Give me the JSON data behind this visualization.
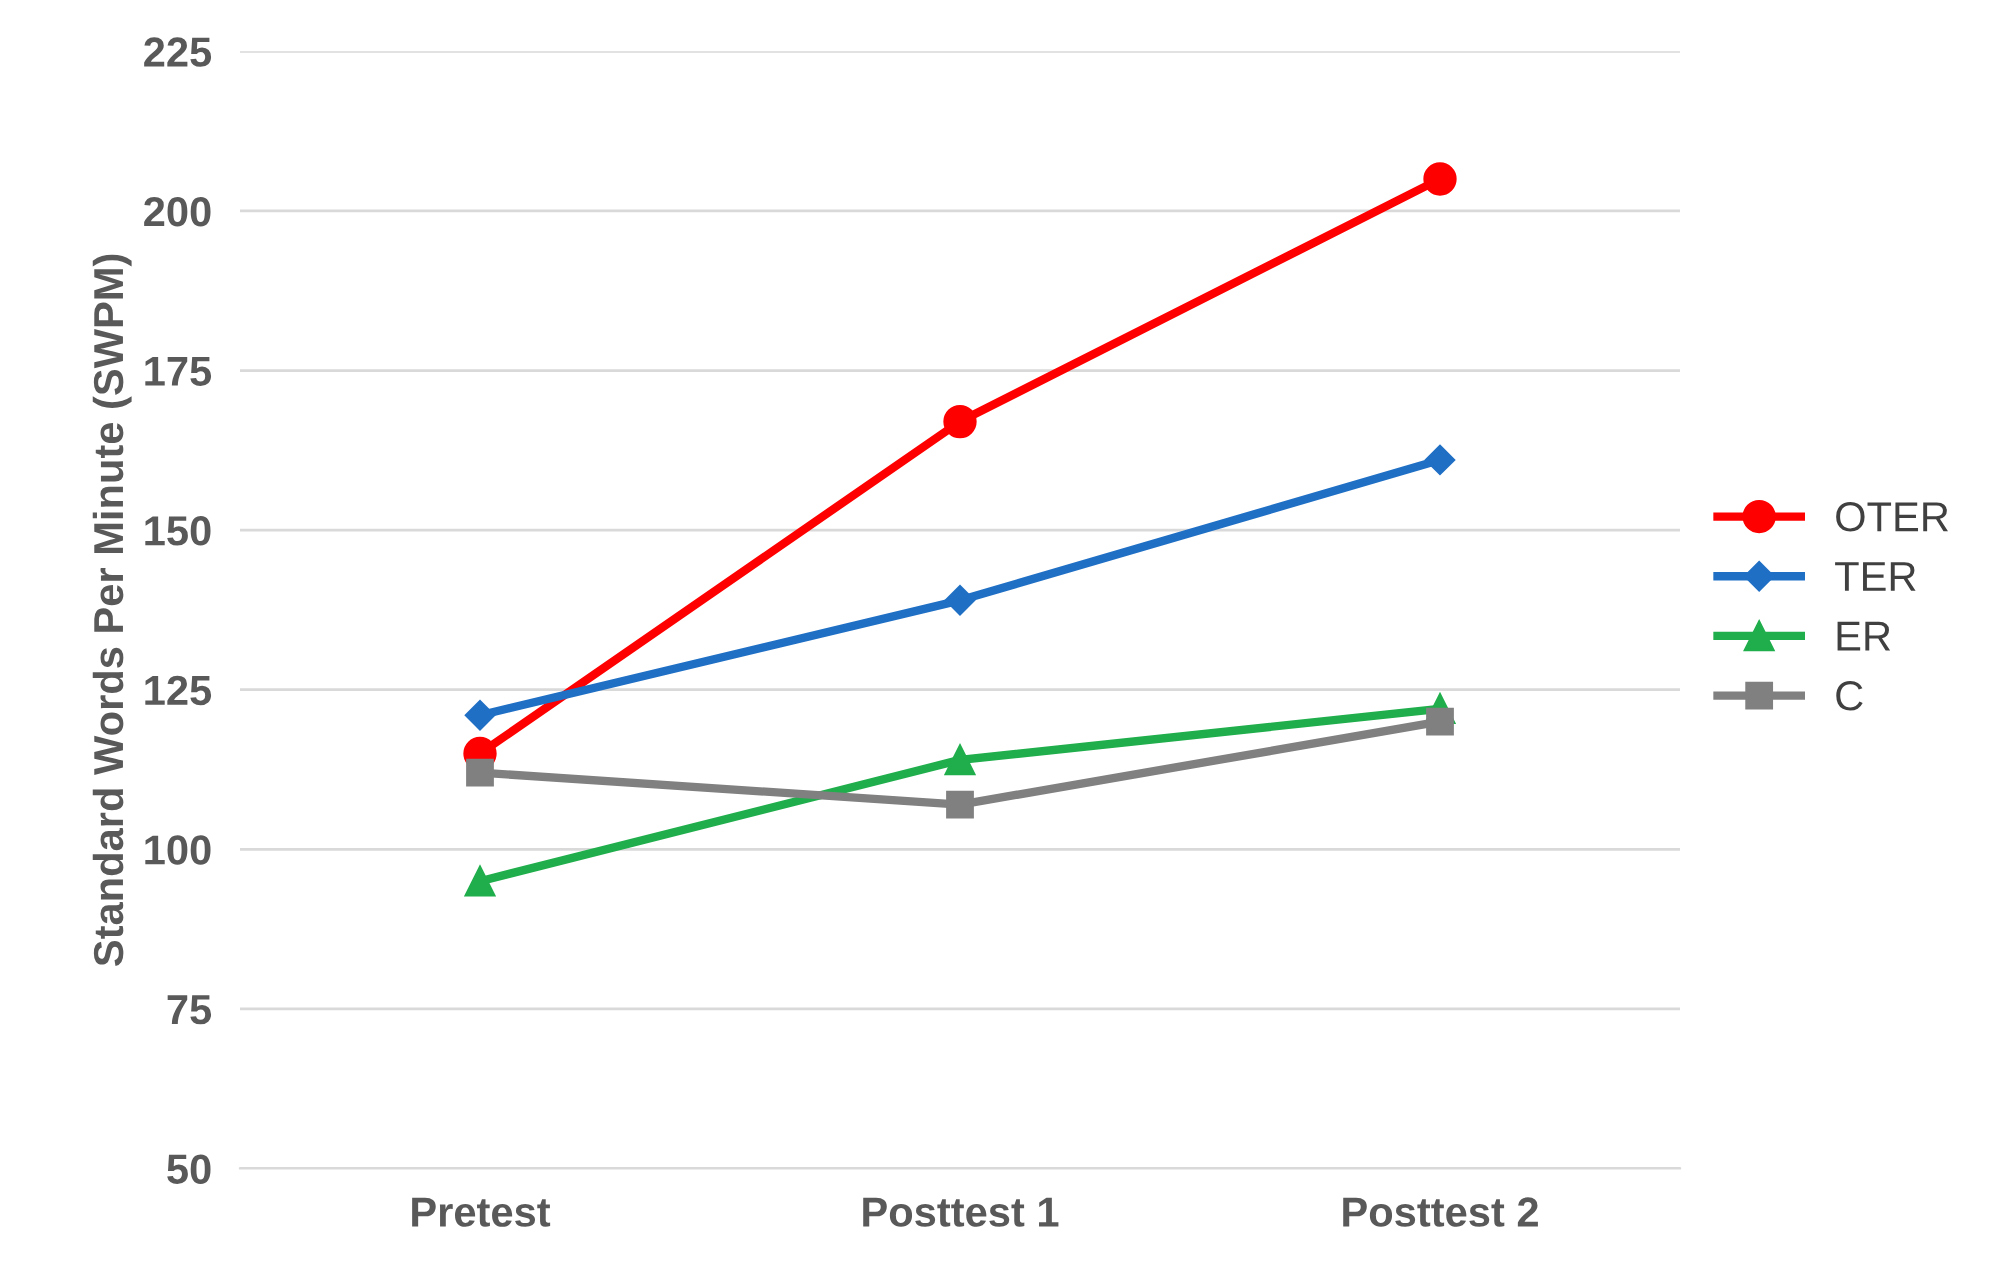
{
  "chart_data": {
    "type": "line",
    "ylabel": "Standard Words Per Minute (SWPM)",
    "categories": [
      "Pretest",
      "Posttest 1",
      "Posttest 2"
    ],
    "series": [
      {
        "name": "OTER",
        "color": "#ff0000",
        "marker": "circle",
        "values": [
          115,
          167,
          205
        ]
      },
      {
        "name": "TER",
        "color": "#1f6fc5",
        "marker": "diamond",
        "values": [
          121,
          139,
          161
        ]
      },
      {
        "name": "ER",
        "color": "#1fae4b",
        "marker": "triangle",
        "values": [
          95,
          114,
          122
        ]
      },
      {
        "name": "C",
        "color": "#808080",
        "marker": "square",
        "values": [
          112,
          107,
          120
        ]
      }
    ],
    "ylim": [
      50,
      225
    ],
    "yticks": [
      50,
      75,
      100,
      125,
      150,
      175,
      200,
      225
    ],
    "grid": "y",
    "legend": "right"
  }
}
